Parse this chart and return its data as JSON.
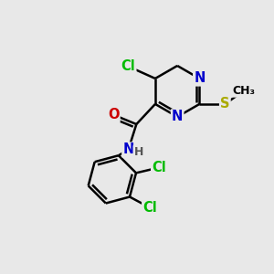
{
  "background_color": "#e8e8e8",
  "bond_color": "#000000",
  "atom_colors": {
    "Cl": "#00bb00",
    "N": "#0000cc",
    "O": "#cc0000",
    "S": "#aaaa00",
    "C": "#000000",
    "H": "#555555"
  },
  "bond_width": 1.8,
  "font_size": 10.5,
  "figsize": [
    3.0,
    3.0
  ],
  "dpi": 100
}
